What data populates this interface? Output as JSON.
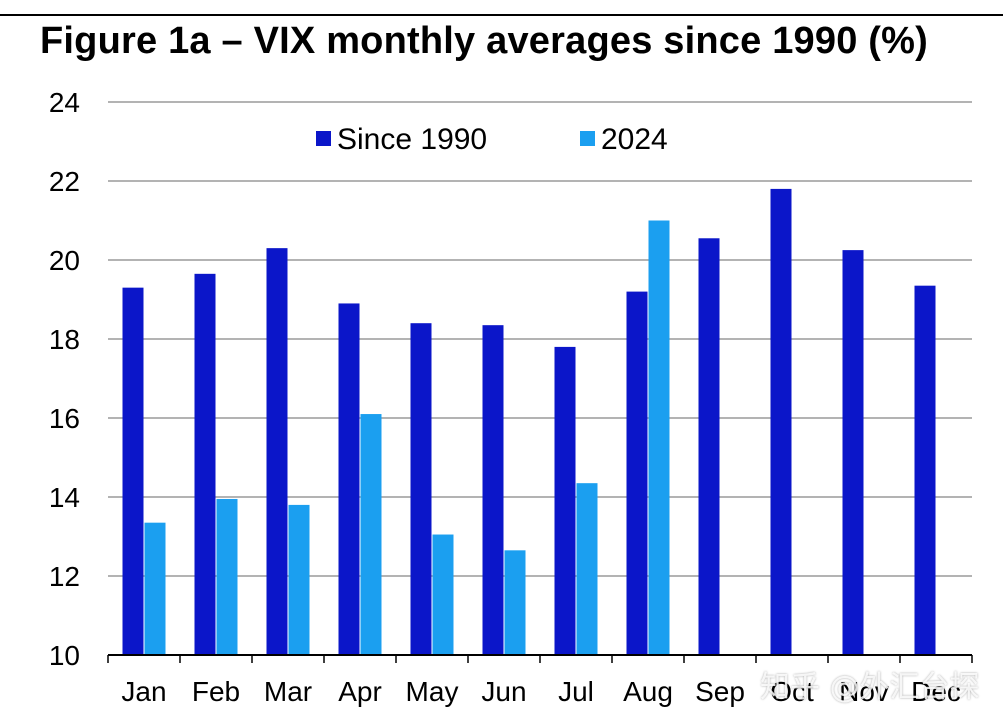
{
  "title": "Figure 1a – VIX monthly averages since 1990 (%)",
  "watermark": "知乎 @外汇台探",
  "colors": {
    "since_1990": "#0b16c9",
    "y2024": "#1b9ff0",
    "grid": "#9a9a9a"
  },
  "chart_data": {
    "type": "bar",
    "title": "Figure 1a – VIX monthly averages since 1990 (%)",
    "xlabel": "",
    "ylabel": "",
    "ylim": [
      10,
      24
    ],
    "yticks": [
      10,
      12,
      14,
      16,
      18,
      20,
      22,
      24
    ],
    "grid": true,
    "legend_position": "top-left",
    "categories": [
      "Jan",
      "Feb",
      "Mar",
      "Apr",
      "May",
      "Jun",
      "Jul",
      "Aug",
      "Sep",
      "Oct",
      "Nov",
      "Dec"
    ],
    "series": [
      {
        "name": "Since 1990",
        "values": [
          19.3,
          19.65,
          20.3,
          18.9,
          18.4,
          18.35,
          17.8,
          19.2,
          20.55,
          21.8,
          20.25,
          19.35
        ]
      },
      {
        "name": "2024",
        "values": [
          13.35,
          13.95,
          13.8,
          16.1,
          13.05,
          12.65,
          14.35,
          21.0,
          null,
          null,
          null,
          null
        ]
      }
    ]
  }
}
